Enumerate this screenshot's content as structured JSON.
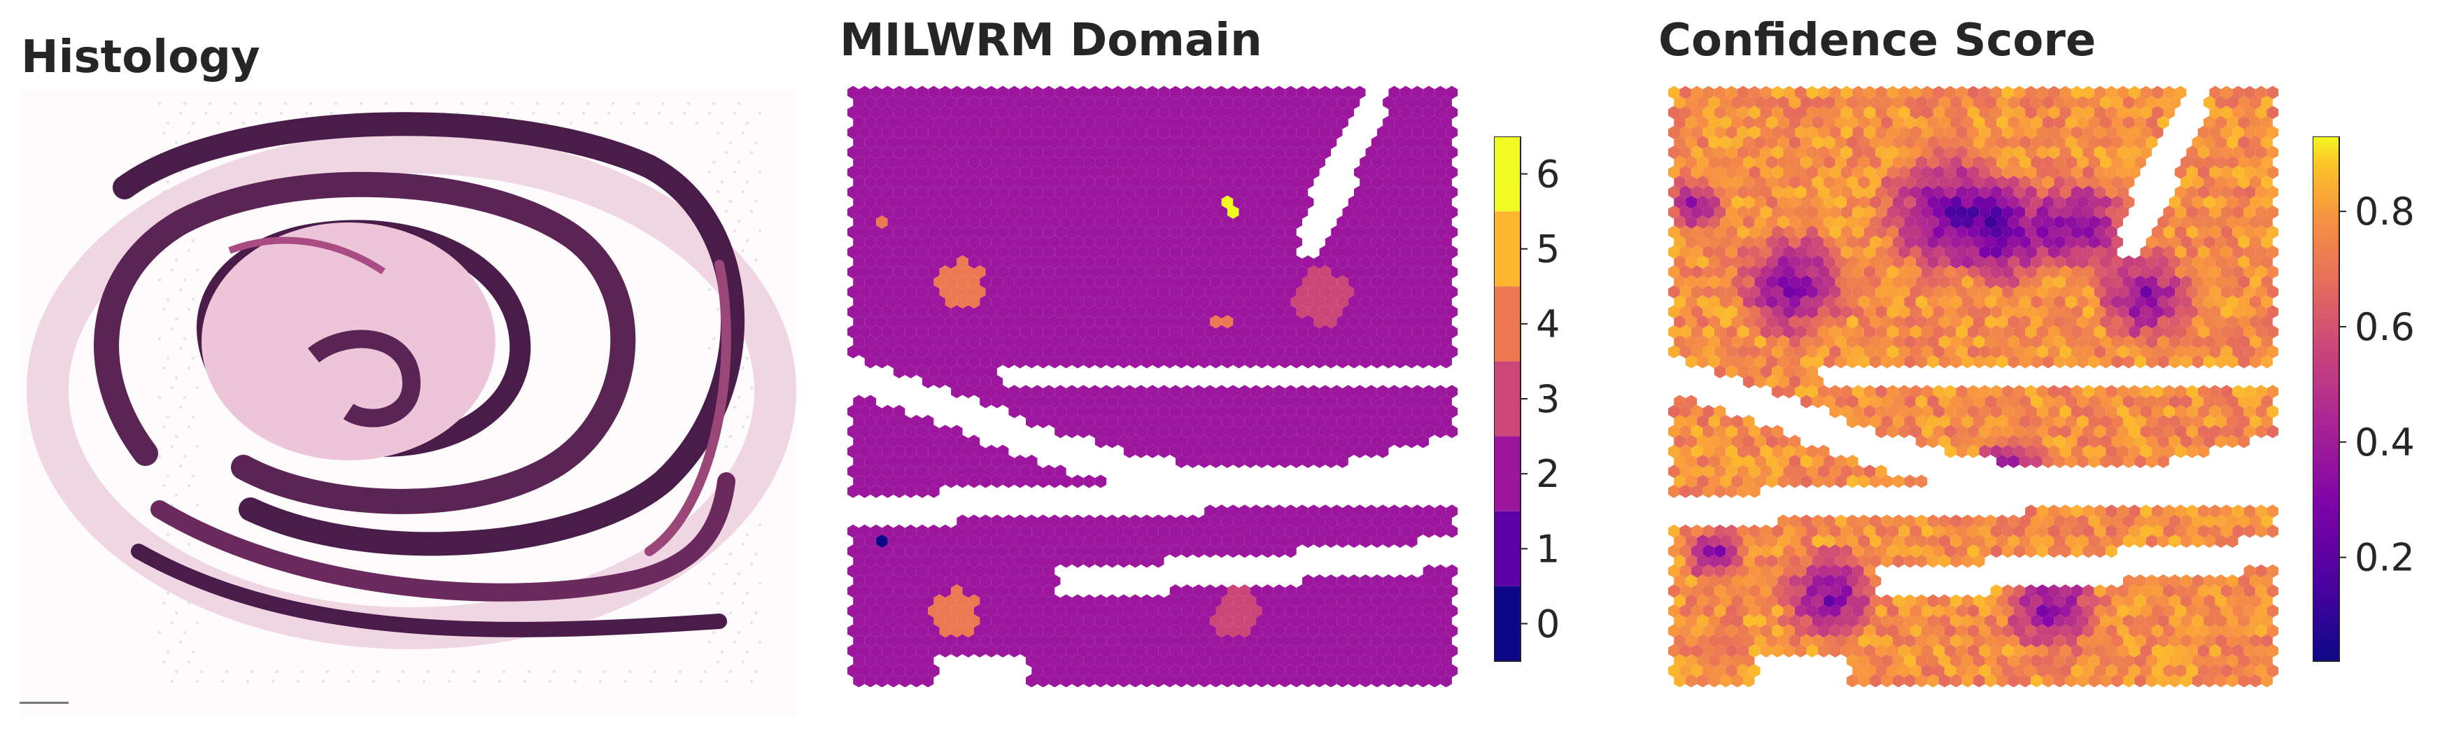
{
  "panels": [
    {
      "title": "Histology"
    },
    {
      "title": "MILWRM Domain"
    },
    {
      "title": "Confidence Score"
    }
  ],
  "chart_data": [
    {
      "type": "heatmap",
      "title": "Histology",
      "content": "H&E stained tissue section (swiss-roll intestine) with spatial transcriptomics spot grid"
    },
    {
      "type": "heatmap",
      "title": "MILWRM Domain",
      "colorbar": {
        "kind": "discrete",
        "ticks": [
          0,
          1,
          2,
          3,
          4,
          5,
          6
        ],
        "colors": [
          "#0d0887",
          "#5c01a6",
          "#9c179e",
          "#cc4778",
          "#ed7953",
          "#fdb42f",
          "#f0f921"
        ]
      },
      "domain_counts_visual": {
        "dominant": 2,
        "patches": [
          4,
          3,
          5,
          6,
          0
        ]
      }
    },
    {
      "type": "heatmap",
      "title": "Confidence Score",
      "colorbar": {
        "kind": "continuous",
        "colormap": "plasma",
        "ticks": [
          0.2,
          0.4,
          0.6,
          0.8
        ],
        "range": [
          0.02,
          0.93
        ]
      }
    }
  ],
  "colors": {
    "tissue_dark": "#4a1c4a",
    "tissue_pink": "#d99ab8",
    "domain_main": "#9c179e"
  }
}
